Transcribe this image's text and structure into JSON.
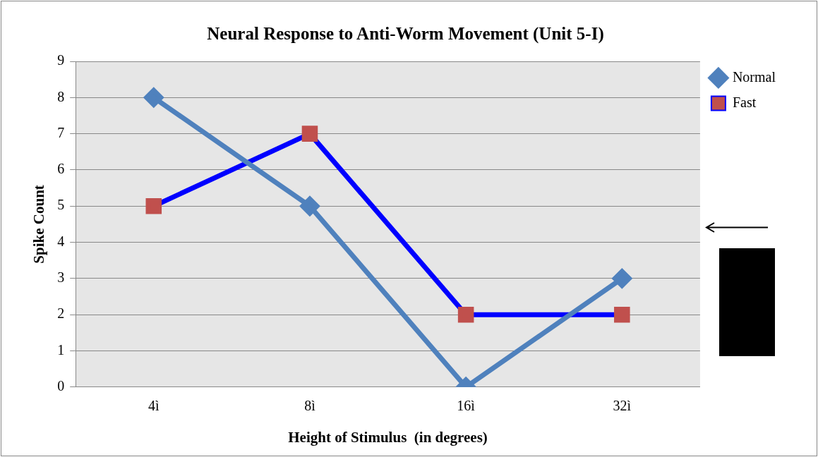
{
  "chart_data": {
    "type": "line",
    "title": "Neural Response to Anti-Worm Movement (Unit 5-I)",
    "xlabel": "Height of Stimulus  (in degrees)",
    "ylabel": "Spike Count",
    "categories": [
      "4ì",
      "8ì",
      "16ì",
      "32ì"
    ],
    "series": [
      {
        "name": "Normal",
        "color": "#4f81bd",
        "marker": "diamond",
        "values": [
          8,
          5,
          0,
          3
        ]
      },
      {
        "name": "Fast",
        "color": "#0000ff",
        "colors": [
          "#c0504d",
          "#c0504d",
          "#c0504d",
          "#c0504d"
        ],
        "marker": "square",
        "values": [
          5,
          7,
          2,
          2
        ]
      }
    ],
    "ylim": [
      0,
      9
    ],
    "yticks": [
      0,
      1,
      2,
      3,
      4,
      5,
      6,
      7,
      8,
      9
    ],
    "grid": "y",
    "legend": "right",
    "line_style": "solid"
  }
}
